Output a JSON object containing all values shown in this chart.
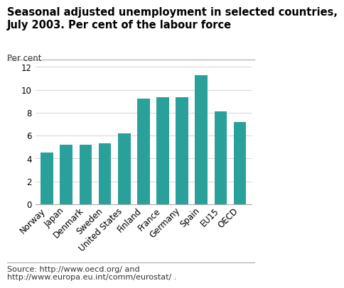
{
  "title": "Seasonal adjusted unemployment in selected countries,\nJuly 2003. Per cent of the labour force",
  "ylabel": "Per cent",
  "categories": [
    "Norway",
    "Japan",
    "Denmark",
    "Sweden",
    "United States",
    "Finland",
    "France",
    "Germany",
    "Spain",
    "EU15",
    "OECD"
  ],
  "values": [
    4.5,
    5.2,
    5.2,
    5.3,
    6.2,
    9.25,
    9.35,
    9.35,
    11.3,
    8.1,
    7.2
  ],
  "bar_color": "#2aa09a",
  "ylim": [
    0,
    12
  ],
  "yticks": [
    0,
    2,
    4,
    6,
    8,
    10,
    12
  ],
  "source_text": "Source: http://www.oecd.org/ and\nhttp://www.europa.eu.int/comm/eurostat/ .",
  "title_fontsize": 10.5,
  "tick_fontsize": 8.5,
  "source_fontsize": 8,
  "ylabel_fontsize": 8.5,
  "background_color": "#ffffff"
}
